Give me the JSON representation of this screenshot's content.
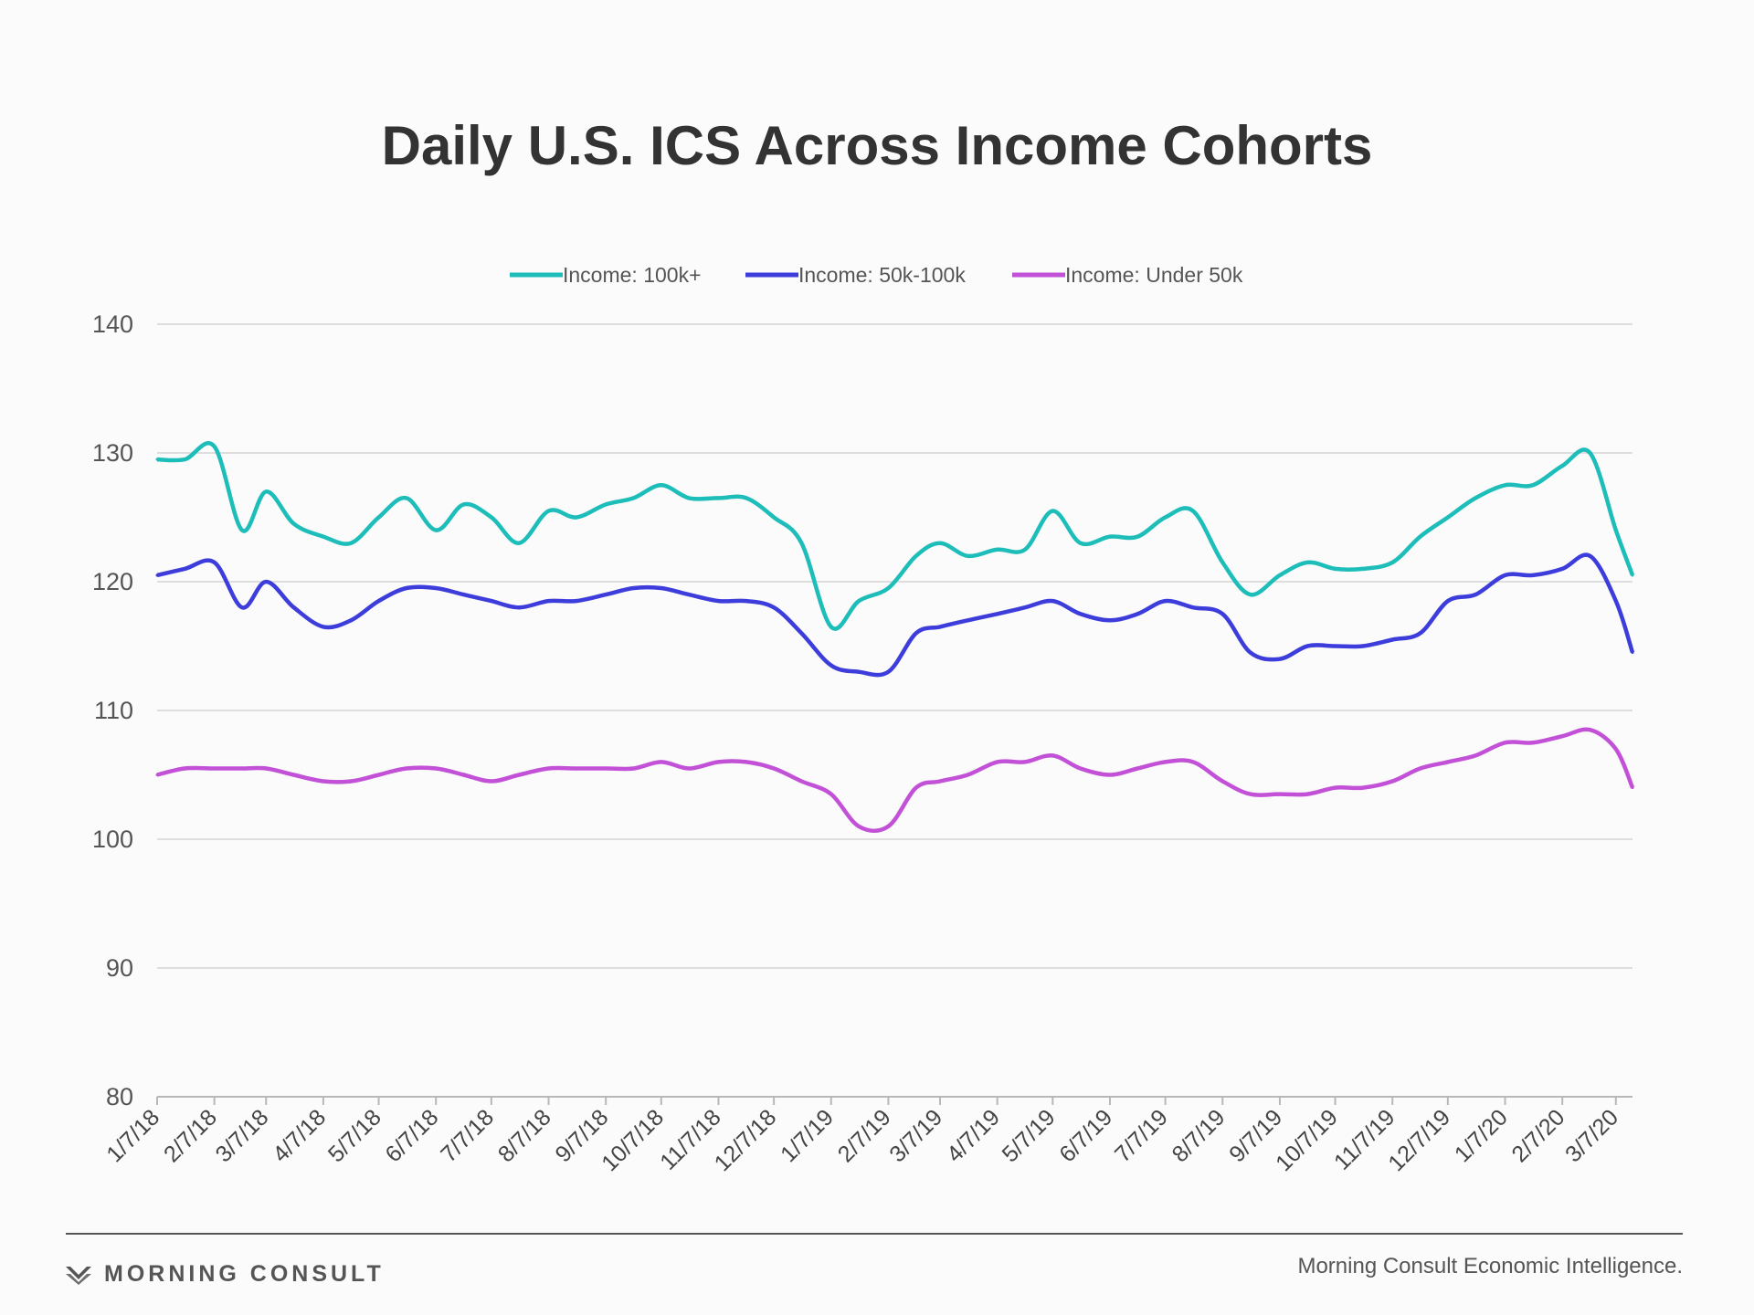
{
  "chart_data": {
    "type": "line",
    "title": "Daily U.S. ICS Across Income Cohorts",
    "xlabel": "",
    "ylabel": "",
    "ylim": [
      80,
      140
    ],
    "yticks": [
      "80",
      "90",
      "100",
      "110",
      "120",
      "130",
      "140"
    ],
    "xrange": [
      "2018-01-07",
      "2020-03-16"
    ],
    "x_tick_labels": [
      "1/7/18",
      "2/7/18",
      "3/7/18",
      "4/7/18",
      "5/7/18",
      "6/7/18",
      "7/7/18",
      "8/7/18",
      "9/7/18",
      "10/7/18",
      "11/7/18",
      "12/7/18",
      "1/7/19",
      "2/7/19",
      "3/7/19",
      "4/7/19",
      "5/7/19",
      "6/7/19",
      "7/7/19",
      "8/7/19",
      "9/7/19",
      "10/7/19",
      "11/7/19",
      "12/7/19",
      "1/7/20",
      "2/7/20",
      "3/7/20"
    ],
    "x": [
      "1/7/18",
      "1/22/18",
      "2/7/18",
      "2/22/18",
      "3/7/18",
      "3/22/18",
      "4/7/18",
      "4/22/18",
      "5/7/18",
      "5/22/18",
      "6/7/18",
      "6/22/18",
      "7/7/18",
      "7/22/18",
      "8/7/18",
      "8/22/18",
      "9/7/18",
      "9/22/18",
      "10/7/18",
      "10/22/18",
      "11/7/18",
      "11/22/18",
      "12/7/18",
      "12/22/18",
      "1/7/19",
      "1/22/19",
      "2/7/19",
      "2/22/19",
      "3/7/19",
      "3/22/19",
      "4/7/19",
      "4/22/19",
      "5/7/19",
      "5/22/19",
      "6/7/19",
      "6/22/19",
      "7/7/19",
      "7/22/19",
      "8/7/19",
      "8/22/19",
      "9/7/19",
      "9/22/19",
      "10/7/19",
      "10/22/19",
      "11/7/19",
      "11/22/19",
      "12/7/19",
      "12/22/19",
      "1/7/20",
      "1/22/20",
      "2/7/20",
      "2/22/20",
      "3/7/20",
      "3/16/20"
    ],
    "series": [
      {
        "name": "Income: 100k+",
        "color": "#1dbdb9",
        "values": [
          129.5,
          129.5,
          130.5,
          124.0,
          127.0,
          124.5,
          123.5,
          123.0,
          125.0,
          126.5,
          124.0,
          126.0,
          125.0,
          123.0,
          125.5,
          125.0,
          126.0,
          126.5,
          127.5,
          126.5,
          126.5,
          126.5,
          125.0,
          123.0,
          116.5,
          118.5,
          119.5,
          122.0,
          123.0,
          122.0,
          122.5,
          122.5,
          125.5,
          123.0,
          123.5,
          123.5,
          125.0,
          125.5,
          121.5,
          119.0,
          120.5,
          121.5,
          121.0,
          121.0,
          121.5,
          123.5,
          125.0,
          126.5,
          127.5,
          127.5,
          129.0,
          130.0,
          124.0,
          120.5
        ]
      },
      {
        "name": "Income: 50k-100k",
        "color": "#3d3ddc",
        "values": [
          120.5,
          121.0,
          121.5,
          118.0,
          120.0,
          118.0,
          116.5,
          117.0,
          118.5,
          119.5,
          119.5,
          119.0,
          118.5,
          118.0,
          118.5,
          118.5,
          119.0,
          119.5,
          119.5,
          119.0,
          118.5,
          118.5,
          118.0,
          116.0,
          113.5,
          113.0,
          113.0,
          116.0,
          116.5,
          117.0,
          117.5,
          118.0,
          118.5,
          117.5,
          117.0,
          117.5,
          118.5,
          118.0,
          117.5,
          114.5,
          114.0,
          115.0,
          115.0,
          115.0,
          115.5,
          116.0,
          118.5,
          119.0,
          120.5,
          120.5,
          121.0,
          122.0,
          118.5,
          114.5
        ]
      },
      {
        "name": "Income: Under 50k",
        "color": "#c251d8",
        "values": [
          105.0,
          105.5,
          105.5,
          105.5,
          105.5,
          105.0,
          104.5,
          104.5,
          105.0,
          105.5,
          105.5,
          105.0,
          104.5,
          105.0,
          105.5,
          105.5,
          105.5,
          105.5,
          106.0,
          105.5,
          106.0,
          106.0,
          105.5,
          104.5,
          103.5,
          101.0,
          101.0,
          104.0,
          104.5,
          105.0,
          106.0,
          106.0,
          106.5,
          105.5,
          105.0,
          105.5,
          106.0,
          106.0,
          104.5,
          103.5,
          103.5,
          103.5,
          104.0,
          104.0,
          104.5,
          105.5,
          106.0,
          106.5,
          107.5,
          107.5,
          108.0,
          108.5,
          107.0,
          104.0
        ]
      }
    ],
    "legend_position": "top-center",
    "grid": true
  },
  "footer": {
    "brand": "MORNING CONSULT",
    "source": "Morning Consult Economic Intelligence."
  }
}
